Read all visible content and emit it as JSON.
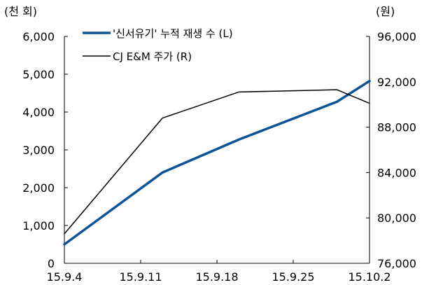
{
  "chart_data": {
    "type": "line",
    "left_unit": "(천 회)",
    "right_unit": "(원)",
    "x": [
      "15.9.4",
      "15.9.11",
      "15.9.18",
      "15.9.25",
      "15.10.2"
    ],
    "x_tick_positions": [
      0,
      7,
      14,
      21,
      28
    ],
    "ylim_left": [
      0,
      6000
    ],
    "ylim_right": [
      76000,
      96000
    ],
    "y_ticks_left": [
      "0",
      "1,000",
      "2,000",
      "3,000",
      "4,000",
      "5,000",
      "6,000"
    ],
    "y_ticks_right": [
      "76,000",
      "80,000",
      "84,000",
      "88,000",
      "92,000",
      "96,000"
    ],
    "series": [
      {
        "name": "'신서유기' 누적 재생 수 (L)",
        "axis": "left",
        "color": "#0c5396",
        "points": [
          [
            0,
            500
          ],
          [
            9,
            2400
          ],
          [
            16,
            3270
          ],
          [
            25,
            4270
          ],
          [
            28,
            4820
          ]
        ]
      },
      {
        "name": "CJ E&M 주가 (R)",
        "axis": "right",
        "color": "#000000",
        "points": [
          [
            0,
            78600
          ],
          [
            9,
            88800
          ],
          [
            16,
            91100
          ],
          [
            25,
            91300
          ],
          [
            28,
            90100
          ]
        ]
      }
    ],
    "grid": false,
    "legend_position": "top-left"
  }
}
